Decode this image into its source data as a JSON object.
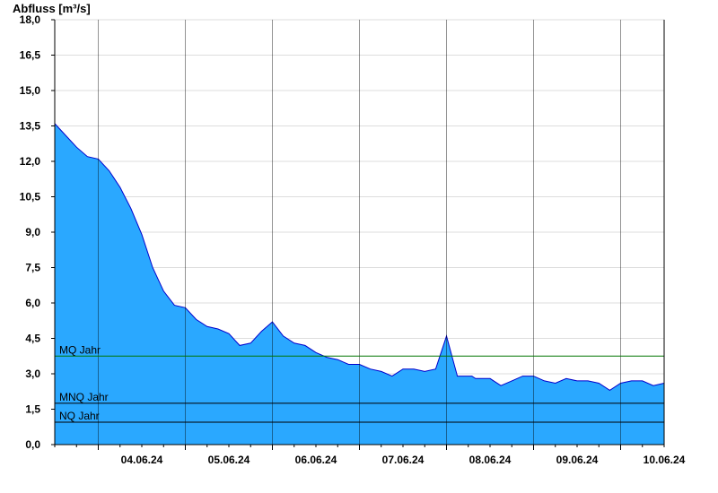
{
  "chart_data": {
    "type": "area",
    "ylabel": "Abfluss [m³/s]",
    "ylim": [
      0,
      18.0
    ],
    "y_ticks": [
      "0,0",
      "1,5",
      "3,0",
      "4,5",
      "6,0",
      "7,5",
      "9,0",
      "10,5",
      "12,0",
      "13,5",
      "15,0",
      "16,5",
      "18,0"
    ],
    "x_ticks": [
      "04.06.24",
      "05.06.24",
      "06.06.24",
      "07.06.24",
      "08.06.24",
      "09.06.24",
      "10.06.24"
    ],
    "xlim": [
      "03.06.24 12:00",
      "10.06.24 12:00"
    ],
    "grid": true,
    "colors": {
      "fill": "#2aa8ff",
      "line": "#0000cc",
      "mq_line": "#007700",
      "ref_line": "#000000",
      "grid": "#dddddd"
    },
    "reference_lines": [
      {
        "name": "MQ Jahr",
        "value": 3.75
      },
      {
        "name": "MNQ Jahr",
        "value": 1.75
      },
      {
        "name": "NQ Jahr",
        "value": 0.95
      }
    ],
    "series": [
      {
        "x": [
          "03.06.24 12:00",
          "03.06.24 15:00",
          "03.06.24 18:00",
          "03.06.24 21:00",
          "04.06.24 00:00",
          "04.06.24 03:00",
          "04.06.24 06:00",
          "04.06.24 09:00",
          "04.06.24 12:00",
          "04.06.24 15:00",
          "04.06.24 18:00",
          "04.06.24 21:00",
          "05.06.24 00:00",
          "05.06.24 03:00",
          "05.06.24 06:00",
          "05.06.24 09:00",
          "05.06.24 12:00",
          "05.06.24 15:00",
          "05.06.24 18:00",
          "05.06.24 21:00",
          "06.06.24 00:00",
          "06.06.24 03:00",
          "06.06.24 06:00",
          "06.06.24 09:00",
          "06.06.24 12:00",
          "06.06.24 15:00",
          "06.06.24 18:00",
          "06.06.24 21:00",
          "07.06.24 00:00",
          "07.06.24 03:00",
          "07.06.24 06:00",
          "07.06.24 09:00",
          "07.06.24 12:00",
          "07.06.24 15:00",
          "07.06.24 18:00",
          "07.06.24 21:00",
          "08.06.24 00:00",
          "08.06.24 03:00",
          "08.06.24 06:00",
          "08.06.24 07:00",
          "08.06.24 08:00",
          "08.06.24 09:00",
          "08.06.24 12:00",
          "08.06.24 15:00",
          "08.06.24 18:00",
          "08.06.24 21:00",
          "09.06.24 00:00",
          "09.06.24 03:00",
          "09.06.24 06:00",
          "09.06.24 09:00",
          "09.06.24 12:00",
          "09.06.24 15:00",
          "09.06.24 18:00",
          "09.06.24 21:00",
          "10.06.24 00:00",
          "10.06.24 03:00",
          "10.06.24 06:00",
          "10.06.24 09:00",
          "10.06.24 12:00"
        ],
        "values": [
          13.6,
          13.1,
          12.6,
          12.2,
          12.1,
          11.6,
          10.9,
          10.0,
          8.9,
          7.5,
          6.5,
          5.9,
          5.8,
          5.3,
          5.0,
          4.9,
          4.7,
          4.2,
          4.3,
          4.8,
          5.2,
          4.6,
          4.3,
          4.2,
          3.9,
          3.7,
          3.6,
          3.4,
          3.4,
          3.2,
          3.1,
          2.9,
          3.2,
          3.2,
          3.1,
          3.2,
          4.6,
          2.9,
          2.9,
          2.9,
          2.8,
          2.8,
          2.8,
          2.5,
          2.7,
          2.9,
          2.9,
          2.7,
          2.6,
          2.8,
          2.7,
          2.7,
          2.6,
          2.3,
          2.6,
          2.7,
          2.7,
          2.5,
          2.6
        ]
      }
    ]
  }
}
